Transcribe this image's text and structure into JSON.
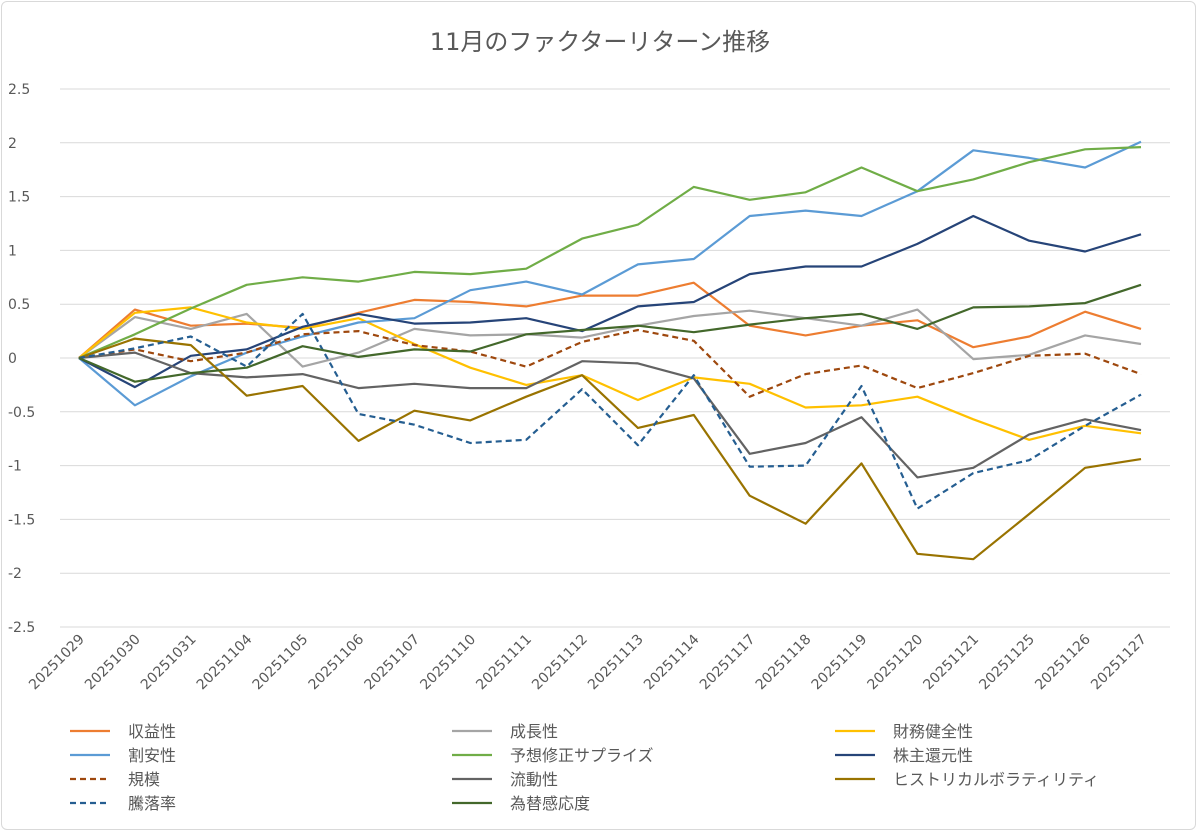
{
  "chart_data": {
    "type": "line",
    "title": "11月のファクターリターン推移",
    "xlabel": "",
    "ylabel": "",
    "ylim": [
      -2.5,
      2.5
    ],
    "yticks": [
      "2.5",
      "2",
      "1.5",
      "1",
      "0.5",
      "0",
      "-0.5",
      "-1",
      "-1.5",
      "-2",
      "-2.5"
    ],
    "grid": true,
    "legend_position": "bottom",
    "categories": [
      "20251029",
      "20251030",
      "20251031",
      "20251104",
      "20251105",
      "20251106",
      "20251107",
      "20251110",
      "20251111",
      "20251112",
      "20251113",
      "20251114",
      "20251117",
      "20251118",
      "20251119",
      "20251120",
      "20251121",
      "20251125",
      "20251126",
      "20251127"
    ],
    "series": [
      {
        "name": "収益性",
        "color": "#ED7D31",
        "dash": false,
        "values": [
          0,
          0.45,
          0.3,
          0.32,
          0.28,
          0.42,
          0.54,
          0.52,
          0.48,
          0.58,
          0.58,
          0.7,
          0.3,
          0.21,
          0.3,
          0.35,
          0.1,
          0.2,
          0.43,
          0.27
        ]
      },
      {
        "name": "成長性",
        "color": "#A5A5A5",
        "dash": false,
        "values": [
          0,
          0.38,
          0.27,
          0.41,
          -0.08,
          0.05,
          0.27,
          0.21,
          0.22,
          0.19,
          0.3,
          0.39,
          0.44,
          0.37,
          0.3,
          0.45,
          -0.01,
          0.03,
          0.21,
          0.13
        ]
      },
      {
        "name": "財務健全性",
        "color": "#FFC000",
        "dash": false,
        "values": [
          0,
          0.42,
          0.47,
          0.33,
          0.27,
          0.37,
          0.13,
          -0.09,
          -0.25,
          -0.16,
          -0.39,
          -0.18,
          -0.24,
          -0.46,
          -0.44,
          -0.36,
          -0.57,
          -0.76,
          -0.63,
          -0.7
        ]
      },
      {
        "name": "割安性",
        "color": "#5B9BD5",
        "dash": false,
        "values": [
          0,
          -0.44,
          -0.17,
          0.05,
          0.2,
          0.33,
          0.37,
          0.63,
          0.71,
          0.59,
          0.87,
          0.92,
          1.32,
          1.37,
          1.32,
          1.55,
          1.93,
          1.86,
          1.77,
          2.01
        ]
      },
      {
        "name": "予想修正サプライズ",
        "color": "#70AD47",
        "dash": false,
        "values": [
          0,
          0.22,
          0.46,
          0.68,
          0.75,
          0.71,
          0.8,
          0.78,
          0.83,
          1.11,
          1.24,
          1.59,
          1.47,
          1.54,
          1.77,
          1.55,
          1.66,
          1.82,
          1.94,
          1.96
        ]
      },
      {
        "name": "株主還元性",
        "color": "#264478",
        "dash": false,
        "values": [
          0,
          -0.27,
          0.02,
          0.08,
          0.29,
          0.41,
          0.32,
          0.33,
          0.37,
          0.25,
          0.48,
          0.52,
          0.78,
          0.85,
          0.85,
          1.06,
          1.32,
          1.09,
          0.99,
          1.15
        ]
      },
      {
        "name": "規模",
        "color": "#9E480E",
        "dash": true,
        "values": [
          0,
          0.08,
          -0.03,
          0.05,
          0.22,
          0.25,
          0.12,
          0.06,
          -0.08,
          0.15,
          0.26,
          0.16,
          -0.36,
          -0.15,
          -0.07,
          -0.28,
          -0.14,
          0.02,
          0.04,
          -0.15
        ]
      },
      {
        "name": "流動性",
        "color": "#636363",
        "dash": false,
        "values": [
          0,
          0.05,
          -0.14,
          -0.18,
          -0.15,
          -0.28,
          -0.24,
          -0.28,
          -0.28,
          -0.03,
          -0.05,
          -0.19,
          -0.89,
          -0.79,
          -0.55,
          -1.11,
          -1.02,
          -0.71,
          -0.57,
          -0.67
        ]
      },
      {
        "name": "ヒストリカルボラティリティ",
        "color": "#997300",
        "dash": false,
        "values": [
          0,
          0.18,
          0.12,
          -0.35,
          -0.26,
          -0.77,
          -0.49,
          -0.58,
          -0.36,
          -0.16,
          -0.65,
          -0.53,
          -1.28,
          -1.54,
          -0.98,
          -1.82,
          -1.87,
          -1.45,
          -1.02,
          -0.94
        ]
      },
      {
        "name": "騰落率",
        "color": "#255E91",
        "dash": true,
        "values": [
          0,
          0.09,
          0.2,
          -0.08,
          0.41,
          -0.52,
          -0.62,
          -0.79,
          -0.76,
          -0.29,
          -0.81,
          -0.16,
          -1.01,
          -1.0,
          -0.26,
          -1.4,
          -1.07,
          -0.95,
          -0.63,
          -0.34
        ]
      },
      {
        "name": "為替感応度",
        "color": "#43682B",
        "dash": false,
        "values": [
          0,
          -0.22,
          -0.14,
          -0.09,
          0.11,
          0.01,
          0.08,
          0.06,
          0.22,
          0.26,
          0.3,
          0.24,
          0.31,
          0.37,
          0.41,
          0.27,
          0.47,
          0.48,
          0.51,
          0.68
        ]
      }
    ]
  }
}
